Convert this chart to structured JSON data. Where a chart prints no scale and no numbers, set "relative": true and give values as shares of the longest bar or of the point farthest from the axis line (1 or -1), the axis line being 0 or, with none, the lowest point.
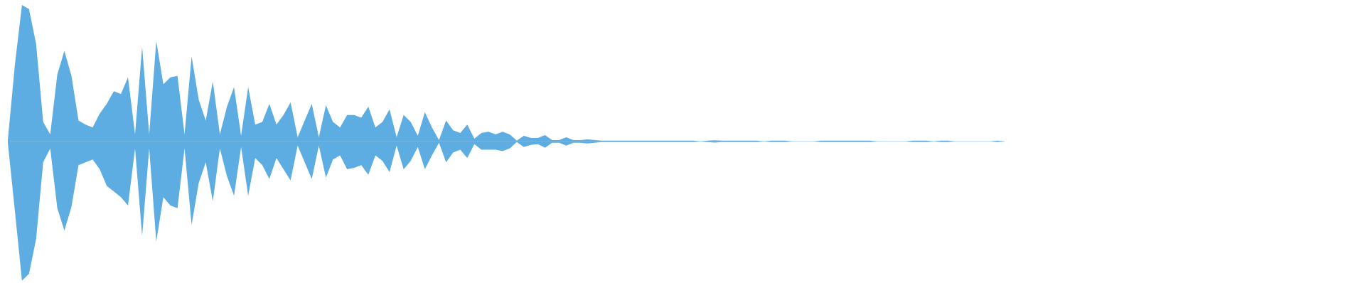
{
  "chart_data": {
    "type": "area",
    "relative": true,
    "categories": [
      null,
      null,
      null,
      null,
      null,
      null,
      null,
      null,
      null,
      null,
      null,
      null,
      null,
      null,
      null,
      null,
      null,
      null,
      null,
      null,
      null,
      null,
      null,
      null,
      null,
      null,
      null,
      null,
      null,
      null,
      null,
      null,
      null,
      null,
      null,
      null,
      null,
      null,
      null,
      null,
      null,
      null,
      null,
      null,
      null,
      null,
      null,
      null,
      null,
      null,
      null,
      null,
      null,
      null,
      null,
      null,
      null,
      null,
      null,
      null,
      null,
      null,
      null,
      null,
      null,
      null,
      null,
      null,
      null,
      null,
      null,
      null,
      null,
      null,
      null,
      null,
      null,
      null,
      null,
      null,
      null,
      null,
      null,
      null,
      null,
      null,
      null,
      null,
      null,
      null,
      null,
      null,
      null,
      null,
      null,
      null,
      null,
      null,
      null,
      null,
      null,
      null,
      null,
      null,
      null,
      null,
      null,
      null,
      null,
      null,
      null,
      null,
      null,
      null,
      null,
      null,
      null,
      null,
      null,
      null,
      null,
      null,
      null,
      null,
      null,
      null,
      null,
      null,
      null,
      null,
      null,
      null,
      null,
      null,
      null,
      null,
      null,
      null,
      null,
      null,
      null,
      null
    ],
    "series": [
      {
        "color": "#5dade2",
        "values": [
          0.01,
          0.55,
          0.98,
          0.95,
          0.7,
          0.14,
          0.05,
          0.48,
          0.65,
          0.47,
          0.15,
          0.12,
          0.1,
          0.2,
          0.27,
          0.36,
          0.34,
          0.46,
          0.05,
          0.68,
          0.05,
          0.72,
          0.41,
          0.46,
          0.47,
          0.05,
          0.61,
          0.3,
          0.15,
          0.43,
          0.05,
          0.25,
          0.39,
          0.04,
          0.39,
          0.12,
          0.14,
          0.27,
          0.12,
          0.19,
          0.28,
          0.03,
          0.15,
          0.27,
          0.03,
          0.26,
          0.14,
          0.1,
          0.19,
          0.19,
          0.17,
          0.25,
          0.1,
          0.14,
          0.23,
          0.03,
          0.19,
          0.14,
          0.04,
          0.21,
          0.1,
          0.01,
          0.15,
          0.08,
          0.06,
          0.12,
          0.02,
          0.06,
          0.07,
          0.05,
          0.07,
          0.05,
          0.005,
          0.04,
          0.025,
          0.025,
          0.045,
          0.01,
          0.01,
          0.03,
          0.01,
          0.01,
          0.015,
          0.01,
          0.005,
          0.005,
          0.005,
          0.005,
          0.005,
          0.005,
          0.005,
          0.005,
          0.005,
          0.005,
          0.005,
          0.005,
          0.005,
          0.005,
          0,
          0.005,
          0.008,
          0.005,
          0.005,
          0.005,
          0.005,
          0.005,
          0.005,
          0,
          0.005,
          0.005,
          0.005,
          0,
          0,
          0,
          0,
          0.005,
          0.005,
          0.005,
          0.005,
          0.005,
          0.005,
          0.005,
          0.005,
          0,
          0,
          0,
          0,
          0,
          0.005,
          0.005,
          0.005,
          0,
          0.005,
          0.005,
          0,
          0,
          0,
          0,
          0,
          0,
          0.005,
          0
        ]
      },
      {
        "color": "#5dade2",
        "values": [
          -0.01,
          -0.5,
          -1,
          -0.95,
          -0.7,
          -0.15,
          -0.05,
          -0.48,
          -0.64,
          -0.47,
          -0.17,
          -0.15,
          -0.13,
          -0.2,
          -0.32,
          -0.36,
          -0.4,
          -0.46,
          -0.05,
          -0.68,
          -0.05,
          -0.72,
          -0.4,
          -0.46,
          -0.48,
          -0.05,
          -0.6,
          -0.3,
          -0.15,
          -0.43,
          -0.05,
          -0.25,
          -0.39,
          -0.04,
          -0.39,
          -0.12,
          -0.17,
          -0.27,
          -0.12,
          -0.2,
          -0.28,
          -0.03,
          -0.15,
          -0.27,
          -0.03,
          -0.26,
          -0.13,
          -0.1,
          -0.2,
          -0.19,
          -0.17,
          -0.24,
          -0.1,
          -0.14,
          -0.22,
          -0.03,
          -0.2,
          -0.14,
          -0.04,
          -0.2,
          -0.1,
          -0.01,
          -0.15,
          -0.08,
          -0.06,
          -0.12,
          -0.02,
          -0.06,
          -0.06,
          -0.06,
          -0.07,
          -0.05,
          -0.005,
          -0.04,
          -0.025,
          -0.02,
          -0.045,
          -0.01,
          -0.01,
          -0.03,
          -0.01,
          -0.01,
          -0.015,
          -0.01,
          -0.005,
          -0.005,
          -0.005,
          -0.005,
          -0.005,
          -0.005,
          -0.005,
          -0.005,
          -0.005,
          -0.005,
          -0.005,
          -0.005,
          -0.005,
          -0.005,
          0,
          -0.005,
          -0.008,
          -0.005,
          -0.005,
          -0.005,
          -0.005,
          -0.005,
          -0.005,
          0,
          -0.005,
          -0.005,
          -0.005,
          0,
          0,
          0,
          0,
          -0.005,
          -0.005,
          -0.005,
          -0.005,
          -0.005,
          -0.005,
          -0.005,
          -0.005,
          0,
          0,
          0,
          0,
          0,
          -0.005,
          -0.005,
          -0.005,
          0,
          -0.005,
          -0.005,
          0,
          0,
          0,
          0,
          0,
          0,
          -0.005,
          0
        ]
      }
    ]
  }
}
